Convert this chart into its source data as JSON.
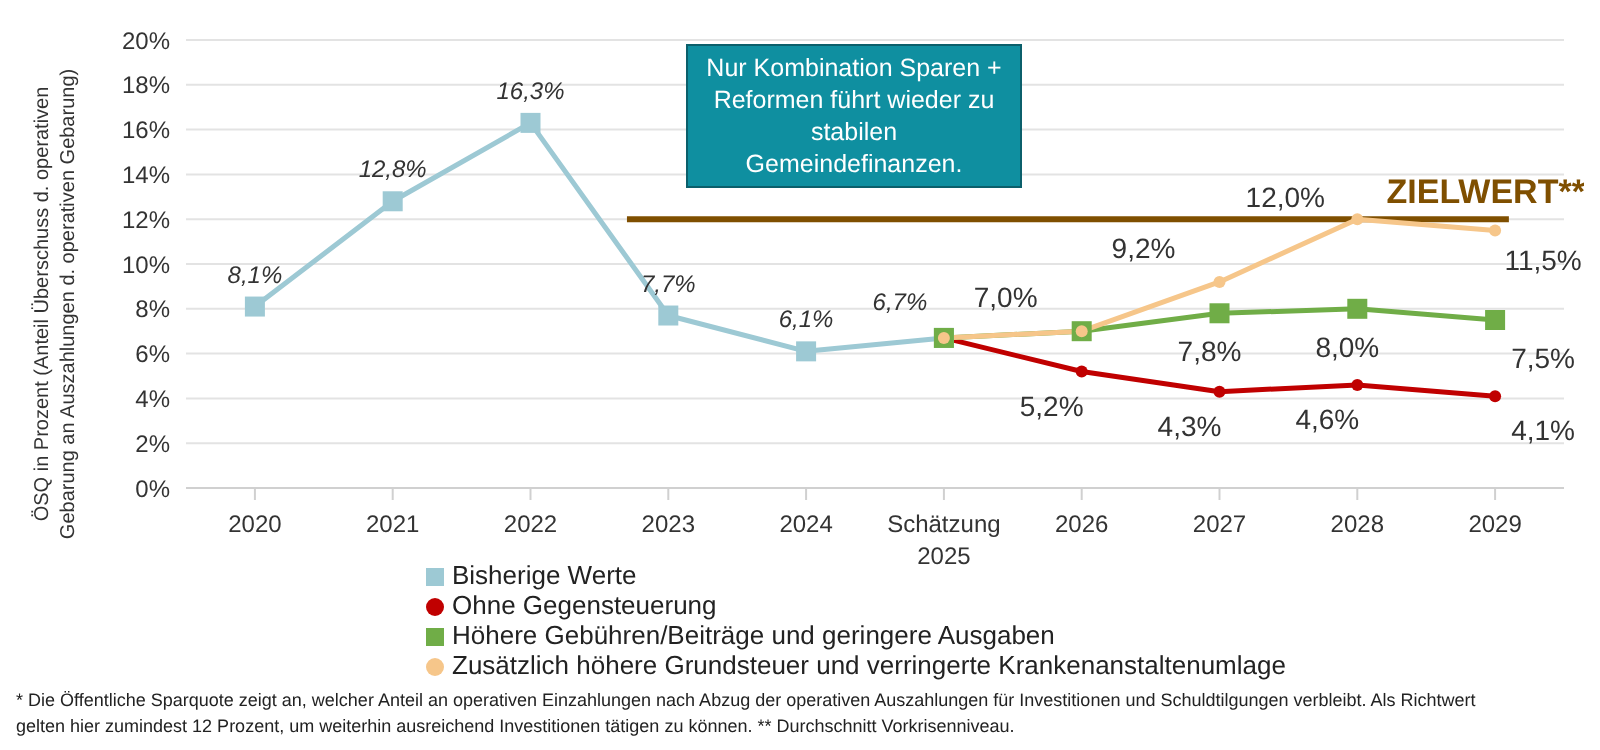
{
  "chart_data": {
    "type": "line",
    "ylabel": "ÖSQ in Prozent (Anteil Überschuss d. operativen Gebarung an Auszahlungen d. operativen Gebarung)",
    "categories": [
      "2020",
      "2021",
      "2022",
      "2023",
      "2024",
      "Schätzung 2025",
      "2026",
      "2027",
      "2028",
      "2029"
    ],
    "series": [
      {
        "name": "Bisherige Werte",
        "color": "#9dc9d4",
        "marker": "square",
        "values": [
          8.1,
          12.8,
          16.3,
          7.7,
          6.1,
          6.7,
          null,
          null,
          null,
          null
        ],
        "value_labels": [
          "8,1%",
          "12,8%",
          "16,3%",
          "7,7%",
          "6,1%",
          "6,7%",
          null,
          null,
          null,
          null
        ]
      },
      {
        "name": "Ohne Gegensteuerung",
        "color": "#c00000",
        "marker": "circle",
        "values": [
          null,
          null,
          null,
          null,
          null,
          6.7,
          5.2,
          4.3,
          4.6,
          4.1
        ],
        "value_labels": [
          null,
          null,
          null,
          null,
          null,
          null,
          "5,2%",
          "4,3%",
          "4,6%",
          "4,1%"
        ]
      },
      {
        "name": "Höhere Gebühren/Beiträge und geringere Ausgaben",
        "color": "#70ad47",
        "marker": "square",
        "values": [
          null,
          null,
          null,
          null,
          null,
          6.7,
          7.0,
          7.8,
          8.0,
          7.5
        ],
        "value_labels": [
          null,
          null,
          null,
          null,
          null,
          null,
          null,
          "7,8%",
          "8,0%",
          "7,5%"
        ]
      },
      {
        "name": "Zusätzlich höhere Grundsteuer und verringerte Krankenanstaltenumlage",
        "color": "#f6c68a",
        "marker": "circle",
        "values": [
          null,
          null,
          null,
          null,
          null,
          6.7,
          7.0,
          9.2,
          12.0,
          11.5
        ],
        "value_labels": [
          null,
          null,
          null,
          null,
          null,
          null,
          "7,0%",
          "9,2%",
          "12,0%",
          "11,5%"
        ]
      }
    ],
    "ylim": [
      0,
      20
    ],
    "yticks": [
      {
        "value": 0,
        "label": "0%"
      },
      {
        "value": 2,
        "label": "2%"
      },
      {
        "value": 4,
        "label": "4%"
      },
      {
        "value": 6,
        "label": "6%"
      },
      {
        "value": 8,
        "label": "8%"
      },
      {
        "value": 10,
        "label": "10%"
      },
      {
        "value": 12,
        "label": "12%"
      },
      {
        "value": 14,
        "label": "14%"
      },
      {
        "value": 16,
        "label": "16%"
      },
      {
        "value": 18,
        "label": "18%"
      },
      {
        "value": 20,
        "label": "20%"
      }
    ],
    "grid": "y",
    "legend": "bottom",
    "ref_lines": [
      {
        "axis": "y",
        "value": 12,
        "label": "ZIELWERT**",
        "color": "#7f4f00"
      }
    ],
    "annotations": [
      "Nur Kombination Sparen + Reformen führt wieder zu stabilen Gemeindefinanzen.",
      "* Die Öffentliche Sparquote zeigt an, welcher Anteil an operativen Einzahlungen nach Abzug der operativen Auszahlungen für Investitionen und Schuldtilgungen verbleibt. Als Richtwert gelten hier zumindest 12 Prozent, um weiterhin ausreichend Investitionen tätigen zu können. ** Durchschnitt Vorkrisenniveau."
    ]
  }
}
